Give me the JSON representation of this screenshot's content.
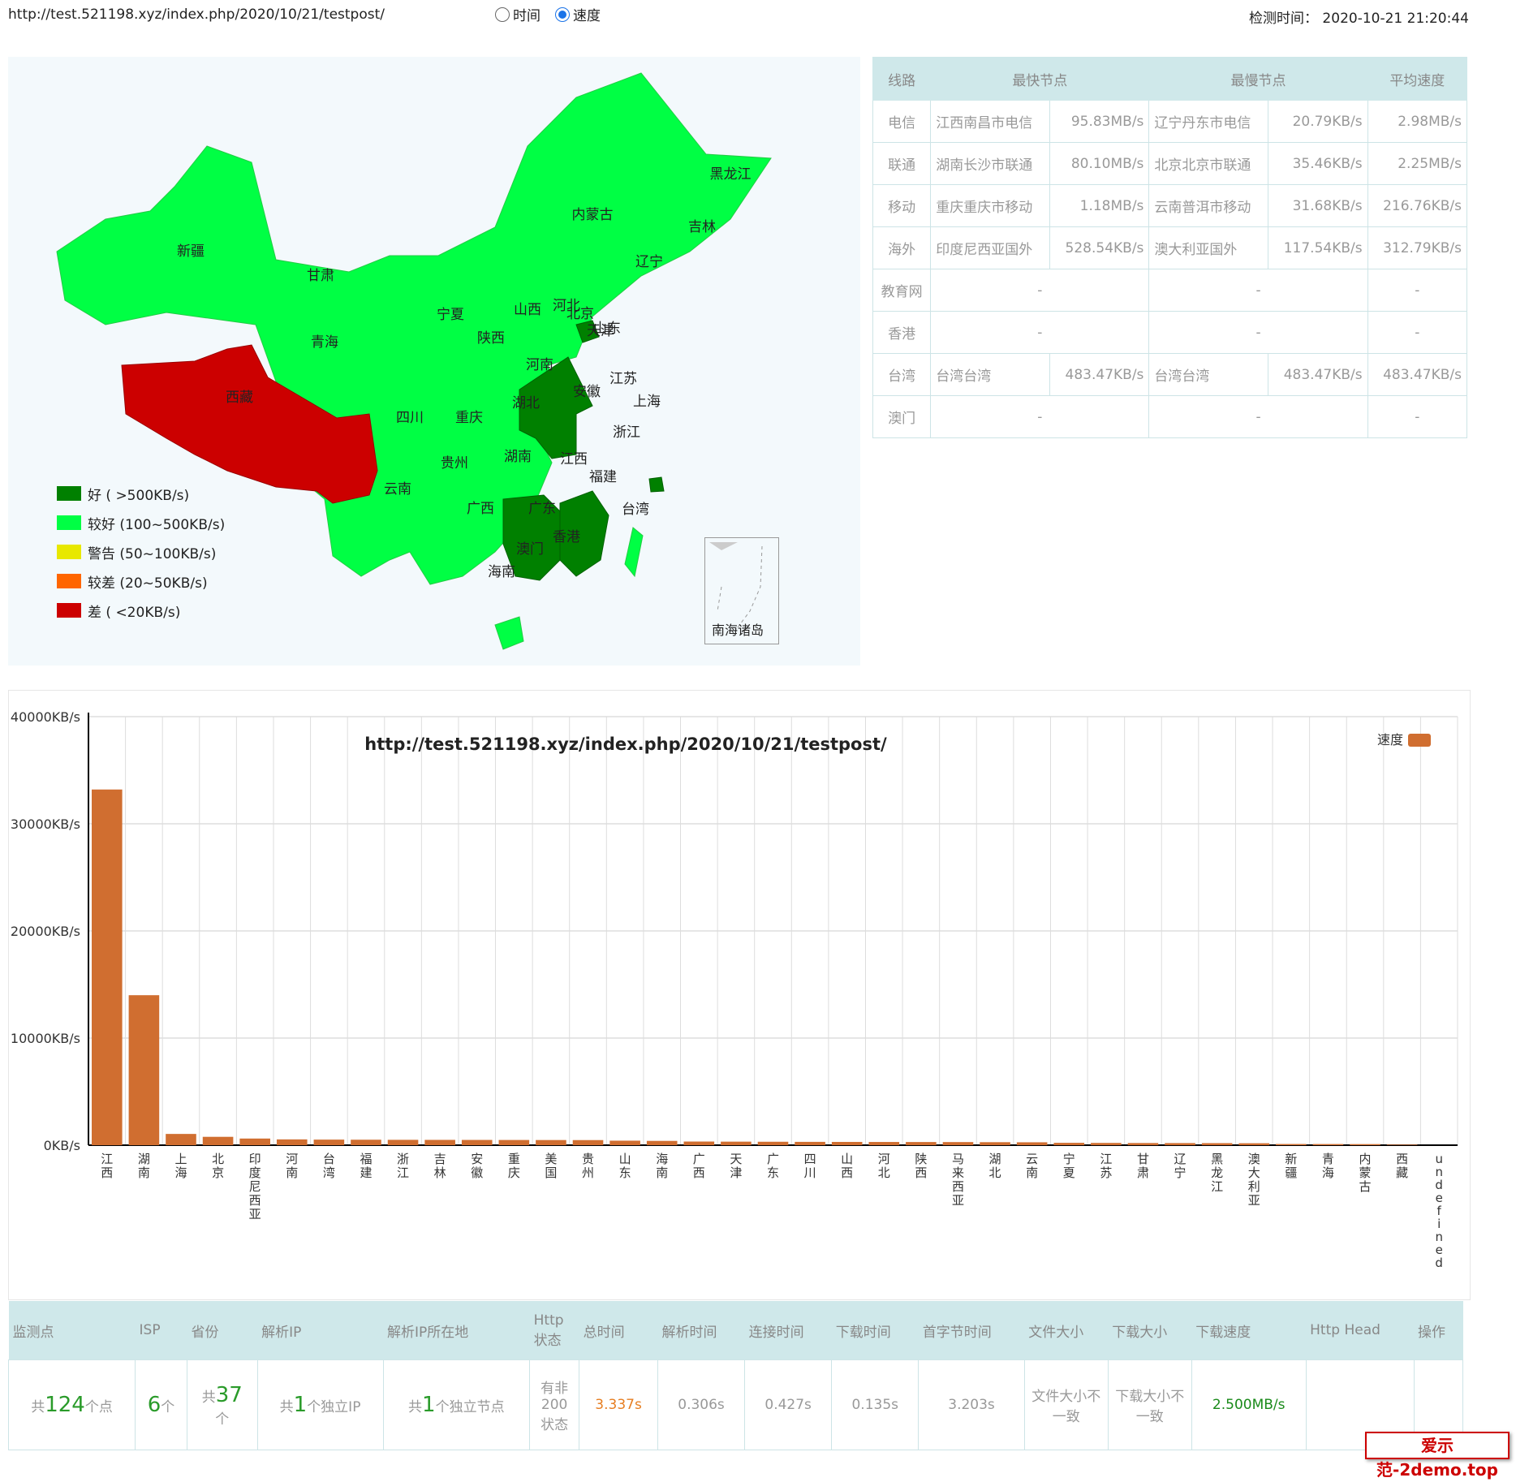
{
  "header": {
    "url": "http://test.521198.xyz/index.php/2020/10/21/testpost/",
    "radio_time": "时间",
    "radio_speed": "速度",
    "detect_time": "检测时间：  2020-10-21 21:20:44"
  },
  "map": {
    "legend": [
      {
        "label": "好 ( >500KB/s)",
        "color": "#008000"
      },
      {
        "label": "较好 (100~500KB/s)",
        "color": "#00ff44"
      },
      {
        "label": "警告 (50~100KB/s)",
        "color": "#e8e800"
      },
      {
        "label": "较差 (20~50KB/s)",
        "color": "#ff6600"
      },
      {
        "label": "差 ( <20KB/s)",
        "color": "#cc0000"
      }
    ],
    "provinces": [
      "黑龙江",
      "内蒙古",
      "吉林",
      "新疆",
      "甘肃",
      "北京",
      "辽宁",
      "天津",
      "宁夏",
      "山西",
      "河北",
      "青海",
      "陕西",
      "山东",
      "西藏",
      "河南",
      "江苏",
      "安徽",
      "湖北",
      "上海",
      "四川",
      "重庆",
      "浙江",
      "贵州",
      "湖南",
      "江西",
      "福建",
      "云南",
      "广西",
      "广东",
      "台湾",
      "香港",
      "澳门",
      "海南"
    ],
    "south_sea": "南海诸岛"
  },
  "route_table": {
    "headers": [
      "线路",
      "最快节点",
      "最慢节点",
      "平均速度"
    ],
    "rows": [
      {
        "line": "电信",
        "fast_name": "江西南昌市电信",
        "fast_speed": "95.83MB/s",
        "slow_name": "辽宁丹东市电信",
        "slow_speed": "20.79KB/s",
        "avg": "2.98MB/s"
      },
      {
        "line": "联通",
        "fast_name": "湖南长沙市联通",
        "fast_speed": "80.10MB/s",
        "slow_name": "北京北京市联通",
        "slow_speed": "35.46KB/s",
        "avg": "2.25MB/s"
      },
      {
        "line": "移动",
        "fast_name": "重庆重庆市移动",
        "fast_speed": "1.18MB/s",
        "slow_name": "云南普洱市移动",
        "slow_speed": "31.68KB/s",
        "avg": "216.76KB/s"
      },
      {
        "line": "海外",
        "fast_name": "印度尼西亚国外",
        "fast_speed": "528.54KB/s",
        "slow_name": "澳大利亚国外",
        "slow_speed": "117.54KB/s",
        "avg": "312.79KB/s"
      },
      {
        "line": "教育网",
        "fast_name": "",
        "fast_speed": "-",
        "slow_name": "",
        "slow_speed": "-",
        "avg": "-"
      },
      {
        "line": "香港",
        "fast_name": "",
        "fast_speed": "-",
        "slow_name": "",
        "slow_speed": "-",
        "avg": "-"
      },
      {
        "line": "台湾",
        "fast_name": "台湾台湾",
        "fast_speed": "483.47KB/s",
        "slow_name": "台湾台湾",
        "slow_speed": "483.47KB/s",
        "avg": "483.47KB/s"
      },
      {
        "line": "澳门",
        "fast_name": "",
        "fast_speed": "-",
        "slow_name": "",
        "slow_speed": "-",
        "avg": "-"
      }
    ]
  },
  "chart_data": {
    "type": "bar",
    "title": "http://test.521198.xyz/index.php/2020/10/21/testpost/",
    "series": [
      {
        "name": "速度",
        "color": "#d06e30"
      }
    ],
    "yticks": [
      "40000KB/s",
      "30000KB/s",
      "20000KB/s",
      "10000KB/s",
      "0KB/s"
    ],
    "ylim": [
      0,
      40000
    ],
    "categories": [
      "江西",
      "湖南",
      "上海",
      "北京",
      "印度尼西亚",
      "河南",
      "台湾",
      "福建",
      "浙江",
      "吉林",
      "安徽",
      "重庆",
      "美国",
      "贵州",
      "山东",
      "海南",
      "广西",
      "天津",
      "广东",
      "四川",
      "山西",
      "河北",
      "陕西",
      "马来西亚",
      "湖北",
      "云南",
      "宁夏",
      "江苏",
      "甘肃",
      "辽宁",
      "黑龙江",
      "澳大利亚",
      "新疆",
      "青海",
      "内蒙古",
      "西藏",
      "undefined"
    ],
    "values": [
      33200,
      14000,
      1050,
      780,
      620,
      540,
      520,
      510,
      500,
      495,
      490,
      485,
      480,
      475,
      420,
      400,
      340,
      330,
      320,
      310,
      305,
      300,
      295,
      290,
      280,
      270,
      220,
      210,
      200,
      195,
      190,
      180,
      110,
      105,
      100,
      50,
      0
    ]
  },
  "stats": {
    "headers": [
      "监测点",
      "ISP",
      "省份",
      "解析IP",
      "解析IP所在地",
      "Http状态",
      "总时间",
      "解析时间",
      "连接时间",
      "下载时间",
      "首字节时间",
      "文件大小",
      "下载大小",
      "下载速度",
      "Http Head",
      "操作"
    ],
    "points_pre": "共",
    "points_num": "124",
    "points_post": "个点",
    "isp_num": "6",
    "isp_post": "个",
    "prov_pre": "共",
    "prov_num": "37",
    "prov_post": "个",
    "ip_pre": "共",
    "ip_num": "1",
    "ip_post": "个独立IP",
    "loc_pre": "共",
    "loc_num": "1",
    "loc_post": "个独立节点",
    "http_status": "有非200状态",
    "total_time": "3.337s",
    "dns_time": "0.306s",
    "connect_time": "0.427s",
    "download_time": "0.135s",
    "first_byte": "3.203s",
    "file_size": "文件大小不一致",
    "download_size": "下载大小不一致",
    "speed": "2.500MB/s"
  },
  "watermark": "爱示范-2demo.top"
}
